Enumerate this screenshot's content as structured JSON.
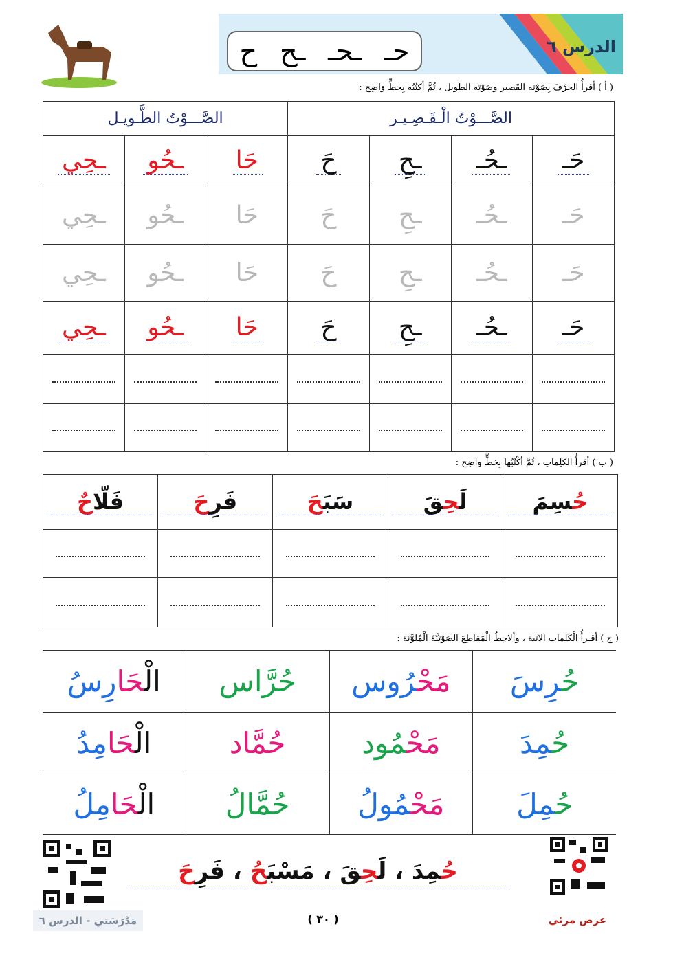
{
  "header": {
    "lesson_title": "الدرس ٦",
    "letters": [
      "حـ",
      "ـحـ",
      "ـح",
      "ح"
    ]
  },
  "section_a": {
    "instruction": "( أ ) أقرأُ الحرْفَ بِصَوْتِه القَصير وصَوْتِه الطَويل ، ثُمَّ أكتُبُه بِخطٍّ وَاضِح :",
    "short_heading": "الصَّـــوْتُ الْـقَـصِـيـر",
    "long_heading": "الصَّـــوْتُ الطَّـويـل",
    "short": [
      "حَـ",
      "ـحُـ",
      "ـحِ",
      "حَ"
    ],
    "long": [
      "حَا",
      "ـحُو",
      "ـحِي"
    ],
    "short_color": "#111111",
    "long_color": "#e31b23"
  },
  "section_b": {
    "instruction": "( ب ) أقرأُ الكلِماتِ ، ثُمَّ أكْتُبُها بِخطٍّ واضِح :",
    "words": [
      {
        "parts": [
          {
            "text": "حُ",
            "color": "#e31b23"
          },
          {
            "text": "سِمَ",
            "color": "#111111"
          }
        ]
      },
      {
        "parts": [
          {
            "text": "لَ",
            "color": "#111111"
          },
          {
            "text": "حِ",
            "color": "#e31b23"
          },
          {
            "text": "قَ",
            "color": "#111111"
          }
        ]
      },
      {
        "parts": [
          {
            "text": "سَبَ",
            "color": "#111111"
          },
          {
            "text": "حَ",
            "color": "#e31b23"
          }
        ]
      },
      {
        "parts": [
          {
            "text": "فَرِ",
            "color": "#111111"
          },
          {
            "text": "حَ",
            "color": "#e31b23"
          }
        ]
      },
      {
        "parts": [
          {
            "text": "فَلّا",
            "color": "#111111"
          },
          {
            "text": "حٌ",
            "color": "#e31b23"
          }
        ]
      }
    ]
  },
  "section_c": {
    "instruction": "( ج ) أقـرأُ الْكَلِمات الآتية ، وألاحِظُ الْمَقاطِعَ الصَوْتِيَّةَ الْمُلوَّنَة :",
    "rows": [
      [
        {
          "parts": [
            {
              "text": "حُ",
              "color": "#1aa34a"
            },
            {
              "text": "رِسَ",
              "color": "#1f6fe0"
            }
          ]
        },
        {
          "parts": [
            {
              "text": "مَحْ",
              "color": "#e4197c"
            },
            {
              "text": "رُوس",
              "color": "#1f6fe0"
            }
          ]
        },
        {
          "parts": [
            {
              "text": "حُرَّاس",
              "color": "#1aa34a"
            }
          ]
        },
        {
          "parts": [
            {
              "text": "الْ",
              "color": "#111111"
            },
            {
              "text": "حَا",
              "color": "#e4197c"
            },
            {
              "text": "رِسُ",
              "color": "#1f6fe0"
            }
          ]
        }
      ],
      [
        {
          "parts": [
            {
              "text": "حُ",
              "color": "#1aa34a"
            },
            {
              "text": "مِدَ",
              "color": "#1f6fe0"
            }
          ]
        },
        {
          "parts": [
            {
              "text": "مَحْ",
              "color": "#e4197c"
            },
            {
              "text": "مُود",
              "color": "#1aa34a"
            }
          ]
        },
        {
          "parts": [
            {
              "text": "حُمَّاد",
              "color": "#e4197c"
            }
          ]
        },
        {
          "parts": [
            {
              "text": "الْ",
              "color": "#111111"
            },
            {
              "text": "حَا",
              "color": "#e4197c"
            },
            {
              "text": "مِدُ",
              "color": "#1f6fe0"
            }
          ]
        }
      ],
      [
        {
          "parts": [
            {
              "text": "حُ",
              "color": "#1aa34a"
            },
            {
              "text": "مِلَ",
              "color": "#1f6fe0"
            }
          ]
        },
        {
          "parts": [
            {
              "text": "مَحْ",
              "color": "#e4197c"
            },
            {
              "text": "مُولُ",
              "color": "#1f6fe0"
            }
          ]
        },
        {
          "parts": [
            {
              "text": "حُمَّالُ",
              "color": "#1aa34a"
            }
          ]
        },
        {
          "parts": [
            {
              "text": "الْ",
              "color": "#111111"
            },
            {
              "text": "حَا",
              "color": "#e4197c"
            },
            {
              "text": "مِلُ",
              "color": "#1f6fe0"
            }
          ]
        }
      ]
    ]
  },
  "sentence": {
    "parts": [
      {
        "text": "حُ",
        "color": "#e31b23"
      },
      {
        "text": "مِدَ",
        "color": "#111111"
      },
      {
        "text": " ، ",
        "color": "#111111"
      },
      {
        "text": "لَ",
        "color": "#111111"
      },
      {
        "text": "حِ",
        "color": "#e31b23"
      },
      {
        "text": "قَ",
        "color": "#111111"
      },
      {
        "text": " ، ",
        "color": "#111111"
      },
      {
        "text": "مَسْبَ",
        "color": "#111111"
      },
      {
        "text": "حُ",
        "color": "#e31b23"
      },
      {
        "text": " ، ",
        "color": "#111111"
      },
      {
        "text": "فَرِ",
        "color": "#111111"
      },
      {
        "text": "حَ",
        "color": "#e31b23"
      }
    ]
  },
  "footer": {
    "left": "مَدْرَسَتي - الدرس ٦",
    "page": "( ٣٠ )",
    "right": "عرض مرئي"
  }
}
